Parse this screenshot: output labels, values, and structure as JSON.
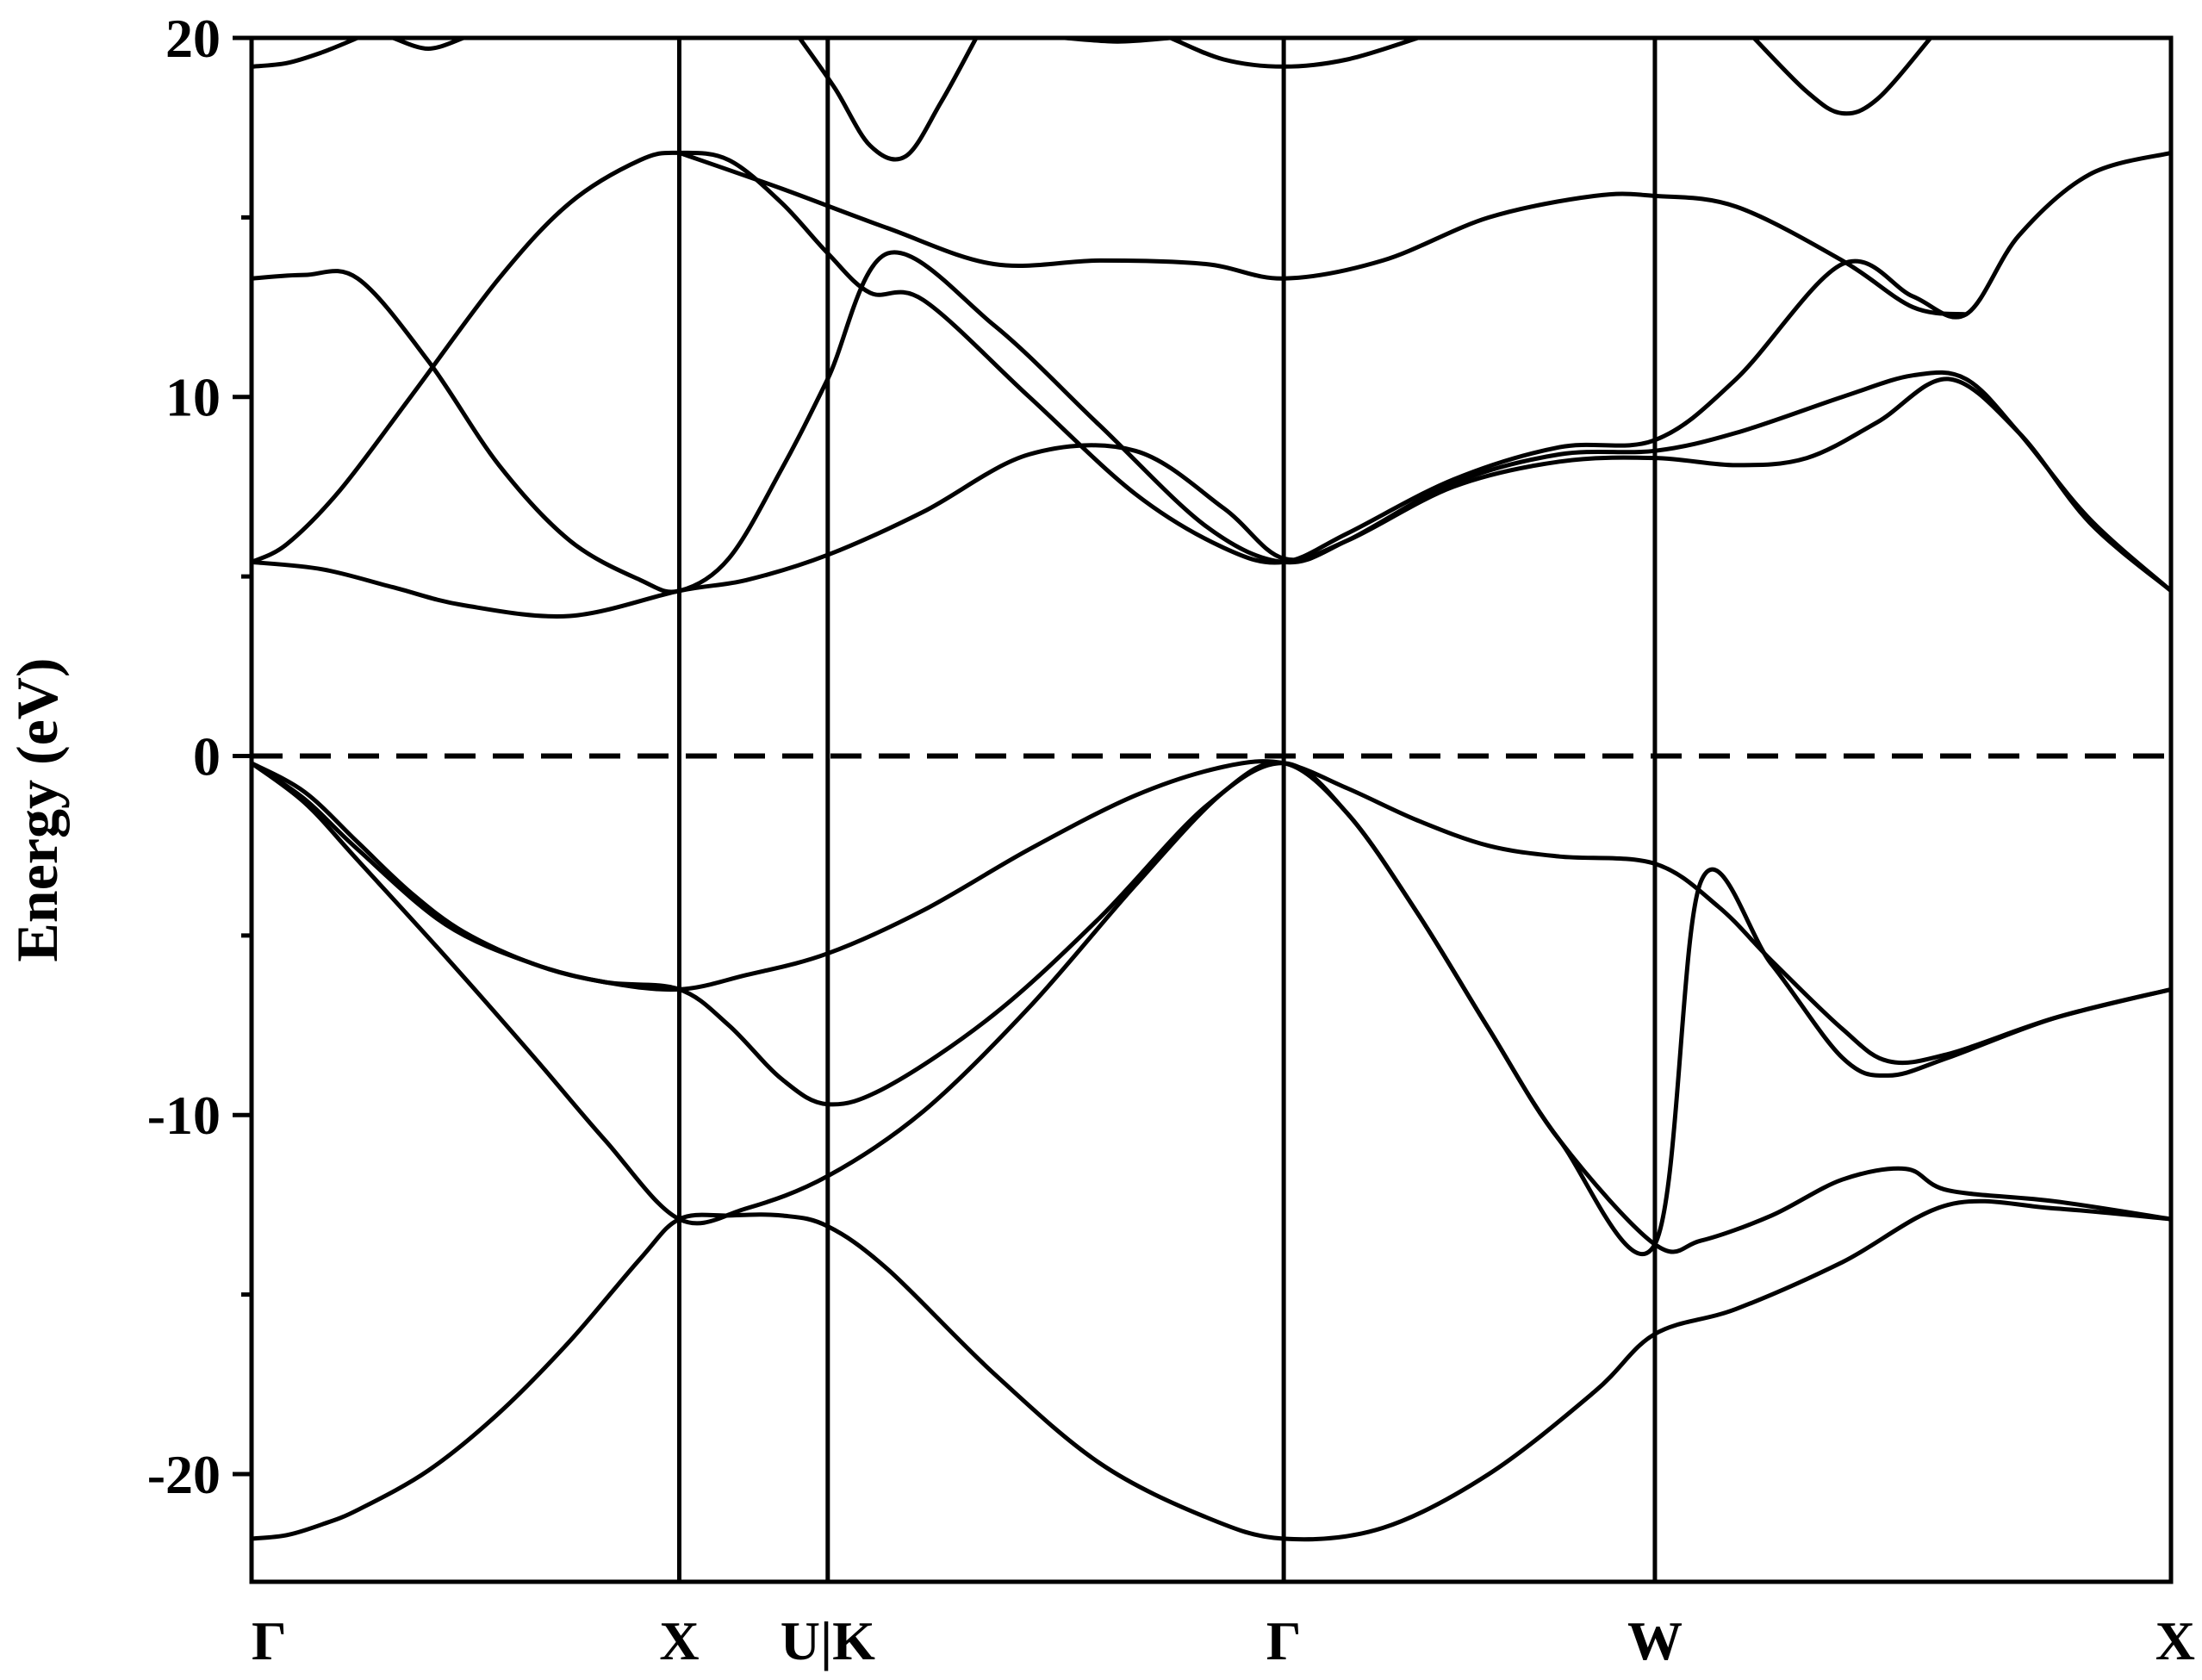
{
  "chart_data": {
    "type": "line",
    "title": "",
    "xlabel": "",
    "ylabel": "Energy (eV)",
    "ylim": [
      -23,
      20
    ],
    "xlim": [
      0,
      5.43
    ],
    "yticks_major": [
      -20,
      -10,
      0,
      10,
      20
    ],
    "yticks_minor": [
      -15,
      -5,
      5,
      15
    ],
    "kpoint_labels": [
      "Γ",
      "X",
      "U|K",
      "Γ",
      "W",
      "X"
    ],
    "kpoint_positions": [
      0,
      1.21,
      1.63,
      2.92,
      3.97,
      5.43
    ],
    "fermi_level": 0,
    "grid": false,
    "line_color": "#000000",
    "series": [
      {
        "x": [
          0,
          0.1,
          0.2,
          0.3,
          0.5,
          0.7,
          0.9,
          1.1,
          1.21,
          1.35,
          1.5,
          1.63,
          1.8,
          2.1,
          2.4,
          2.7,
          2.92,
          3.2,
          3.5,
          3.8,
          3.97,
          4.2,
          4.5,
          4.8,
          5.1,
          5.43
        ],
        "y": [
          -21.8,
          -21.7,
          -21.4,
          -21.0,
          -19.9,
          -18.3,
          -16.3,
          -14.0,
          -12.9,
          -12.8,
          -12.8,
          -13.1,
          -14.3,
          -17.2,
          -19.7,
          -21.2,
          -21.8,
          -21.5,
          -20.0,
          -17.7,
          -16.1,
          -15.4,
          -14.1,
          -12.5,
          -12.6,
          -12.9
        ]
      },
      {
        "x": [
          0,
          0.15,
          0.3,
          0.55,
          0.8,
          1.0,
          1.21,
          1.4,
          1.63,
          1.9,
          2.2,
          2.5,
          2.75,
          2.92,
          3.1,
          3.3,
          3.5,
          3.7,
          3.97,
          4.1,
          4.3,
          4.5,
          4.68,
          4.8,
          5.1,
          5.43
        ],
        "y": [
          -0.2,
          -1.3,
          -2.9,
          -5.6,
          -8.4,
          -10.7,
          -12.9,
          -12.6,
          -11.7,
          -9.9,
          -7.0,
          -3.6,
          -1.0,
          -0.2,
          -1.6,
          -4.4,
          -7.6,
          -10.7,
          -13.6,
          -13.5,
          -12.8,
          -11.8,
          -11.5,
          -12.1,
          -12.4,
          -12.9
        ]
      },
      {
        "x": [
          0,
          0.15,
          0.3,
          0.45,
          0.6,
          0.8,
          1.0,
          1.21,
          1.4,
          1.63,
          1.9,
          2.2,
          2.5,
          2.75,
          2.92,
          3.1,
          3.3,
          3.5,
          3.7,
          3.97,
          4.15,
          4.3,
          4.5,
          4.63,
          4.8,
          5.1,
          5.43
        ],
        "y": [
          -0.2,
          -1.0,
          -2.4,
          -3.8,
          -4.9,
          -5.8,
          -6.3,
          -6.5,
          -6.1,
          -5.5,
          -4.3,
          -2.6,
          -1.1,
          -0.3,
          -0.2,
          -0.9,
          -1.8,
          -2.5,
          -2.8,
          -3.0,
          -4.2,
          -5.7,
          -7.6,
          -8.5,
          -8.3,
          -7.3,
          -6.5
        ]
      },
      {
        "x": [
          0,
          0.15,
          0.3,
          0.55,
          0.8,
          1.0,
          1.21,
          1.35,
          1.5,
          1.63,
          1.8,
          2.1,
          2.4,
          2.7,
          2.92,
          3.1,
          3.3,
          3.5,
          3.7,
          3.97,
          4.1,
          4.3,
          4.5,
          4.63,
          4.8,
          5.1,
          5.43
        ],
        "y": [
          -0.2,
          -1.2,
          -2.6,
          -4.7,
          -5.8,
          -6.3,
          -6.5,
          -7.5,
          -9.0,
          -9.7,
          -9.2,
          -7.2,
          -4.5,
          -1.4,
          -0.2,
          -1.6,
          -4.4,
          -7.6,
          -10.7,
          -13.6,
          -3.5,
          -5.8,
          -8.4,
          -8.9,
          -8.4,
          -7.3,
          -6.5
        ]
      },
      {
        "x": [
          0,
          0.2,
          0.4,
          0.6,
          0.9,
          1.21,
          1.4,
          1.63,
          1.9,
          2.2,
          2.5,
          2.75,
          2.92,
          3.1,
          3.4,
          3.7,
          3.97,
          4.2,
          4.4,
          4.6,
          4.8,
          5.0,
          5.2,
          5.43
        ],
        "y": [
          5.4,
          5.2,
          4.7,
          4.2,
          3.9,
          4.6,
          4.9,
          5.6,
          6.8,
          8.4,
          8.5,
          6.9,
          5.5,
          6.0,
          7.5,
          8.2,
          8.3,
          8.1,
          8.3,
          9.3,
          10.5,
          9.0,
          6.5,
          4.6
        ]
      },
      {
        "x": [
          0,
          0.1,
          0.25,
          0.45,
          0.7,
          0.9,
          1.1,
          1.21,
          1.35,
          1.5,
          1.63,
          1.75,
          1.9,
          2.2,
          2.5,
          2.75,
          2.92,
          3.1,
          3.4,
          3.7,
          3.97,
          4.2,
          4.5,
          4.7,
          4.85,
          5.0,
          5.2,
          5.43
        ],
        "y": [
          5.4,
          5.9,
          7.4,
          10.0,
          13.3,
          15.4,
          16.6,
          16.8,
          16.6,
          15.4,
          14.0,
          12.9,
          12.7,
          10.0,
          7.3,
          5.8,
          5.4,
          6.2,
          7.7,
          8.6,
          8.8,
          10.5,
          13.7,
          12.8,
          12.3,
          14.5,
          16.2,
          16.8
        ]
      },
      {
        "x": [
          0,
          0.15,
          0.3,
          0.5,
          0.7,
          0.9,
          1.1,
          1.21,
          1.35,
          1.5,
          1.63,
          1.8,
          2.1,
          2.4,
          2.7,
          2.92,
          3.1,
          3.4,
          3.7,
          3.97,
          4.2,
          4.5,
          4.7,
          4.85,
          5.0,
          5.2,
          5.43
        ],
        "y": [
          13.3,
          13.4,
          13.3,
          11.0,
          8.1,
          6.0,
          4.9,
          4.6,
          5.5,
          8.0,
          10.5,
          14.0,
          12.0,
          9.2,
          6.4,
          5.4,
          6.0,
          7.6,
          8.4,
          8.5,
          9.0,
          10.0,
          10.6,
          10.5,
          9.0,
          6.6,
          4.6
        ]
      },
      {
        "x": [
          1.21,
          1.5,
          1.8,
          2.1,
          2.4,
          2.7,
          2.92,
          3.2,
          3.5,
          3.8,
          3.97,
          4.2,
          4.5,
          4.7,
          4.85
        ],
        "y": [
          16.8,
          15.8,
          14.7,
          13.7,
          13.8,
          13.7,
          13.3,
          13.8,
          15.0,
          15.6,
          15.6,
          15.3,
          13.8,
          12.5,
          12.3
        ]
      },
      {
        "x": [
          0,
          0.1,
          0.2,
          0.3
        ],
        "y": [
          19.2,
          19.3,
          19.6,
          20.0
        ]
      },
      {
        "x": [
          0.4,
          0.5,
          0.6
        ],
        "y": [
          20.0,
          19.7,
          20.0
        ]
      },
      {
        "x": [
          1.55,
          1.65,
          1.75,
          1.85,
          1.95,
          2.05
        ],
        "y": [
          20.0,
          18.6,
          17.0,
          16.7,
          18.2,
          20.0
        ]
      },
      {
        "x": [
          2.3,
          2.45,
          2.6
        ],
        "y": [
          20.0,
          19.9,
          20.0
        ]
      },
      {
        "x": [
          2.6,
          2.75,
          2.92,
          3.1,
          3.3
        ],
        "y": [
          20.0,
          19.4,
          19.2,
          19.4,
          20.0
        ]
      },
      {
        "x": [
          4.25,
          4.4,
          4.5,
          4.6,
          4.75
        ],
        "y": [
          20.0,
          18.5,
          17.9,
          18.3,
          20.0
        ]
      }
    ]
  }
}
